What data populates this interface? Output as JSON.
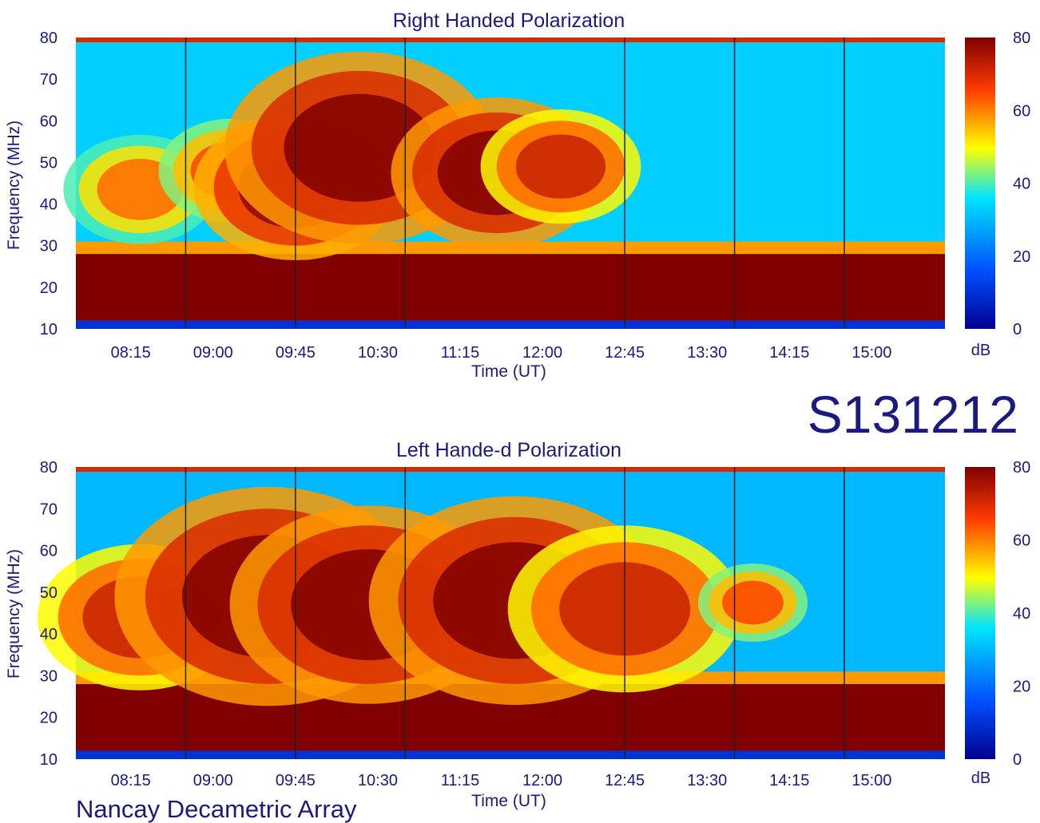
{
  "figure_code": "S131212",
  "footer": "Nancay Decametric Array",
  "chart_data": [
    {
      "type": "heatmap",
      "title": "Right Handed Polarization",
      "xlabel": "Time (UT)",
      "ylabel": "Frequency (MHz)",
      "colorbar_label": "dB",
      "colorbar_ticks": [
        "80",
        "60",
        "40",
        "20",
        "0"
      ],
      "colorbar_range": [
        0,
        80
      ],
      "colormap": [
        "#00008f",
        "#0050ff",
        "#00e5ff",
        "#ffff00",
        "#ff3c00",
        "#800000"
      ],
      "x_ticks": [
        "08:15",
        "09:00",
        "09:45",
        "10:30",
        "11:15",
        "12:00",
        "12:45",
        "13:30",
        "14:15",
        "15:00"
      ],
      "y_ticks": [
        "80",
        "70",
        "60",
        "50",
        "40",
        "30",
        "20",
        "10"
      ],
      "ylim": [
        10,
        80
      ],
      "xlim": [
        "07:45",
        "15:40"
      ],
      "background_db": 33,
      "emission_regions": [
        {
          "t": "08:20",
          "f_lo": 33,
          "f_hi": 54,
          "db": 62
        },
        {
          "t": "09:10",
          "f_lo": 38,
          "f_hi": 58,
          "db": 65
        },
        {
          "t": "09:45",
          "f_lo": 30,
          "f_hi": 58,
          "db": 78
        },
        {
          "t": "10:20",
          "f_lo": 35,
          "f_hi": 72,
          "db": 80
        },
        {
          "t": "11:35",
          "f_lo": 33,
          "f_hi": 62,
          "db": 80
        },
        {
          "t": "12:10",
          "f_lo": 38,
          "f_hi": 60,
          "db": 72
        }
      ],
      "interference_band_db": 80,
      "interference_band_mhz": [
        12,
        28
      ]
    },
    {
      "type": "heatmap",
      "title": "Left Hande-d Polarization",
      "xlabel": "Time (UT)",
      "ylabel": "Frequency (MHz)",
      "colorbar_label": "dB",
      "colorbar_ticks": [
        "80",
        "60",
        "40",
        "20",
        "0"
      ],
      "colorbar_range": [
        0,
        80
      ],
      "colormap": [
        "#00008f",
        "#0050ff",
        "#00e5ff",
        "#ffff00",
        "#ff3c00",
        "#800000"
      ],
      "x_ticks": [
        "08:15",
        "09:00",
        "09:45",
        "10:30",
        "11:15",
        "12:00",
        "12:45",
        "13:30",
        "14:15",
        "15:00"
      ],
      "y_ticks": [
        "80",
        "70",
        "60",
        "50",
        "40",
        "30",
        "20",
        "10"
      ],
      "ylim": [
        10,
        80
      ],
      "xlim": [
        "07:45",
        "15:40"
      ],
      "background_db": 30,
      "emission_regions": [
        {
          "t": "08:20",
          "f_lo": 30,
          "f_hi": 58,
          "db": 72
        },
        {
          "t": "09:30",
          "f_lo": 28,
          "f_hi": 70,
          "db": 80
        },
        {
          "t": "10:25",
          "f_lo": 28,
          "f_hi": 66,
          "db": 80
        },
        {
          "t": "11:45",
          "f_lo": 28,
          "f_hi": 68,
          "db": 80
        },
        {
          "t": "12:45",
          "f_lo": 30,
          "f_hi": 62,
          "db": 72
        },
        {
          "t": "13:55",
          "f_lo": 40,
          "f_hi": 55,
          "db": 65
        }
      ],
      "interference_band_db": 80,
      "interference_band_mhz": [
        12,
        28
      ]
    }
  ]
}
